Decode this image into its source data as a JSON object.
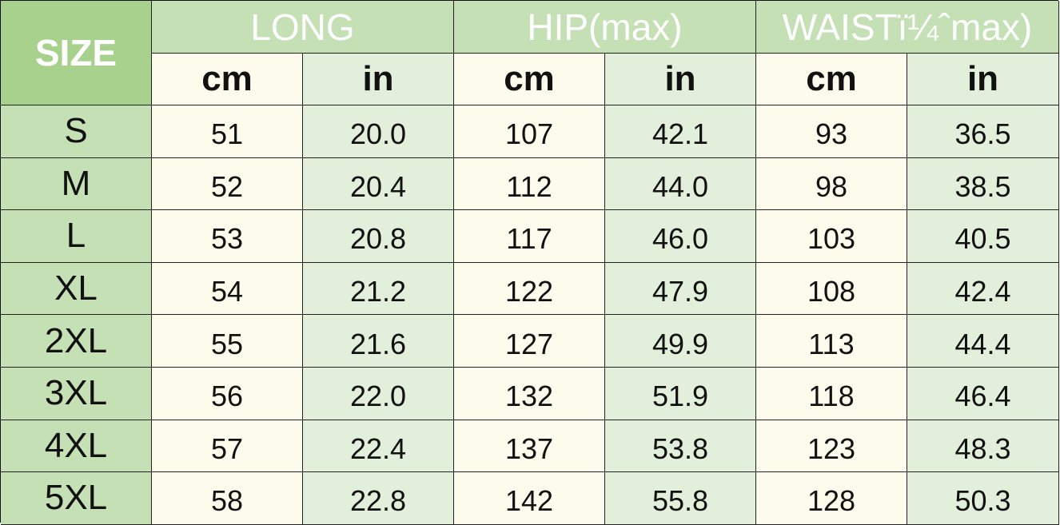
{
  "header": {
    "size_label": "SIZE",
    "groups": [
      "LONG",
      "HIP(max)",
      "WAISTï¼ˆmax)"
    ],
    "units": [
      "cm",
      "in",
      "cm",
      "in",
      "cm",
      "in"
    ]
  },
  "colors": {
    "size_header": "#a9d18e",
    "group_header": "#c5e0b4",
    "cm_cell": "#fdfcec",
    "in_cell": "#e2efda"
  },
  "rows": [
    {
      "size": "S",
      "values": [
        "51",
        "20.0",
        "107",
        "42.1",
        "93",
        "36.5"
      ]
    },
    {
      "size": "M",
      "values": [
        "52",
        "20.4",
        "112",
        "44.0",
        "98",
        "38.5"
      ]
    },
    {
      "size": "L",
      "values": [
        "53",
        "20.8",
        "117",
        "46.0",
        "103",
        "40.5"
      ]
    },
    {
      "size": "XL",
      "values": [
        "54",
        "21.2",
        "122",
        "47.9",
        "108",
        "42.4"
      ]
    },
    {
      "size": "2XL",
      "values": [
        "55",
        "21.6",
        "127",
        "49.9",
        "113",
        "44.4"
      ]
    },
    {
      "size": "3XL",
      "values": [
        "56",
        "22.0",
        "132",
        "51.9",
        "118",
        "46.4"
      ]
    },
    {
      "size": "4XL",
      "values": [
        "57",
        "22.4",
        "137",
        "53.8",
        "123",
        "48.3"
      ]
    },
    {
      "size": "5XL",
      "values": [
        "58",
        "22.8",
        "142",
        "55.8",
        "128",
        "50.3"
      ]
    }
  ]
}
